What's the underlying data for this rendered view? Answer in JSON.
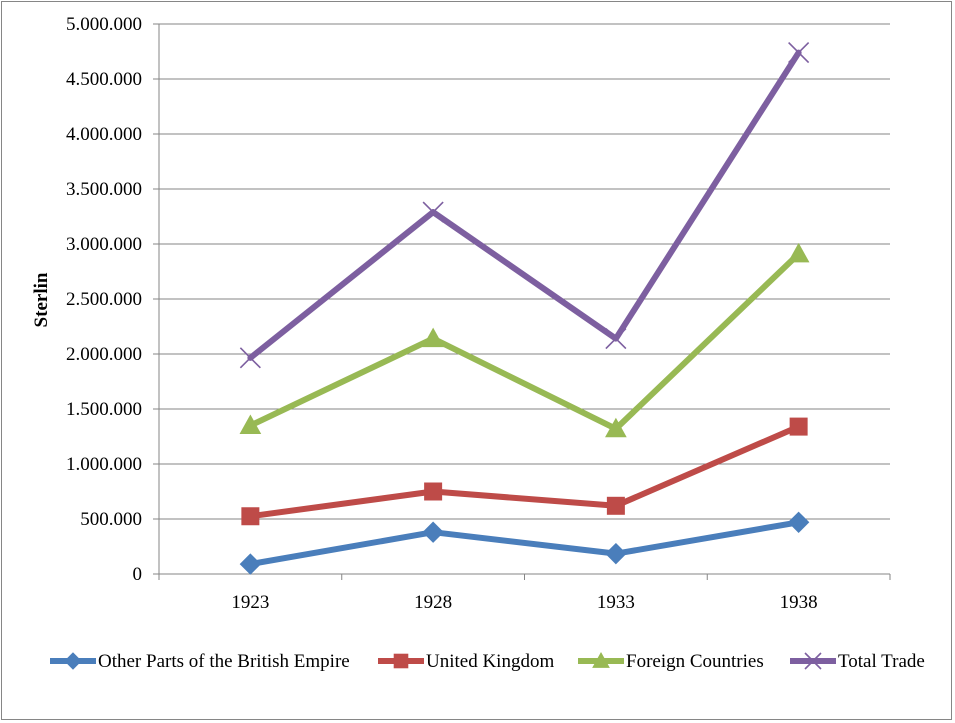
{
  "chart_data": {
    "type": "line",
    "title": "",
    "xlabel": "",
    "ylabel": "Sterlin",
    "categories": [
      "1923",
      "1928",
      "1933",
      "1938"
    ],
    "ylim": [
      0,
      5000000
    ],
    "yticks": [
      0,
      500000,
      1000000,
      1500000,
      2000000,
      2500000,
      3000000,
      3500000,
      4000000,
      4500000,
      5000000
    ],
    "ytick_labels": [
      "0",
      "500.000",
      "1.000.000",
      "1.500.000",
      "2.000.000",
      "2.500.000",
      "3.000.000",
      "3.500.000",
      "4.000.000",
      "4.500.000",
      "5.000.000"
    ],
    "grid": true,
    "legend_position": "bottom",
    "series": [
      {
        "name": "Other Parts of the British Empire",
        "values": [
          90000,
          380000,
          185000,
          470000
        ],
        "color": "#4A7EBB",
        "marker": "diamond"
      },
      {
        "name": "United Kingdom",
        "values": [
          525000,
          750000,
          620000,
          1340000
        ],
        "color": "#BE4B48",
        "marker": "square"
      },
      {
        "name": "Foreign Countries",
        "values": [
          1350000,
          2140000,
          1320000,
          2910000
        ],
        "color": "#98B954",
        "marker": "triangle"
      },
      {
        "name": "Total Trade",
        "values": [
          1965000,
          3290000,
          2140000,
          4740000
        ],
        "color": "#7D5FA0",
        "marker": "x"
      }
    ]
  }
}
